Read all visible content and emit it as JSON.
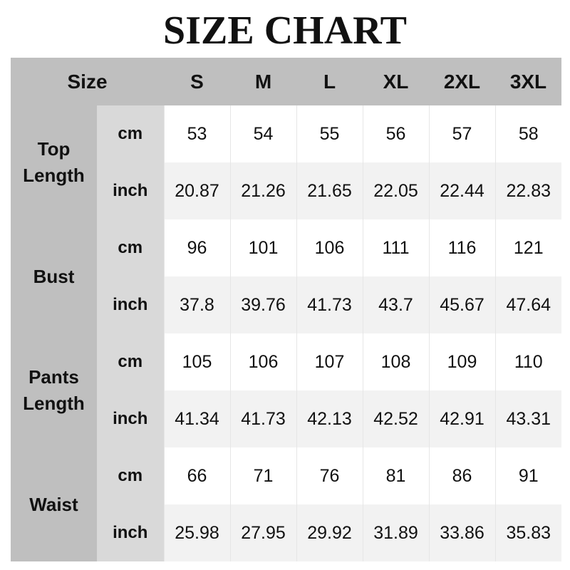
{
  "title": "SIZE CHART",
  "header": {
    "size_label": "Size",
    "sizes": [
      "S",
      "M",
      "L",
      "XL",
      "2XL",
      "3XL"
    ]
  },
  "colors": {
    "header_bg": "#bfbfbf",
    "unit_bg": "#d9d9d9",
    "alt_row_bg": "#f2f2f2"
  },
  "measurements": [
    {
      "name_lines": [
        "Top",
        "Length"
      ],
      "rows": [
        {
          "unit": "cm",
          "values": [
            "53",
            "54",
            "55",
            "56",
            "57",
            "58"
          ]
        },
        {
          "unit": "inch",
          "values": [
            "20.87",
            "21.26",
            "21.65",
            "22.05",
            "22.44",
            "22.83"
          ]
        }
      ]
    },
    {
      "name_lines": [
        "Bust"
      ],
      "rows": [
        {
          "unit": "cm",
          "values": [
            "96",
            "101",
            "106",
            "111",
            "116",
            "121"
          ]
        },
        {
          "unit": "inch",
          "values": [
            "37.8",
            "39.76",
            "41.73",
            "43.7",
            "45.67",
            "47.64"
          ]
        }
      ]
    },
    {
      "name_lines": [
        "Pants",
        "Length"
      ],
      "rows": [
        {
          "unit": "cm",
          "values": [
            "105",
            "106",
            "107",
            "108",
            "109",
            "110"
          ]
        },
        {
          "unit": "inch",
          "values": [
            "41.34",
            "41.73",
            "42.13",
            "42.52",
            "42.91",
            "43.31"
          ]
        }
      ]
    },
    {
      "name_lines": [
        "Waist"
      ],
      "rows": [
        {
          "unit": "cm",
          "values": [
            "66",
            "71",
            "76",
            "81",
            "86",
            "91"
          ]
        },
        {
          "unit": "inch",
          "values": [
            "25.98",
            "27.95",
            "29.92",
            "31.89",
            "33.86",
            "35.83"
          ]
        }
      ]
    }
  ]
}
